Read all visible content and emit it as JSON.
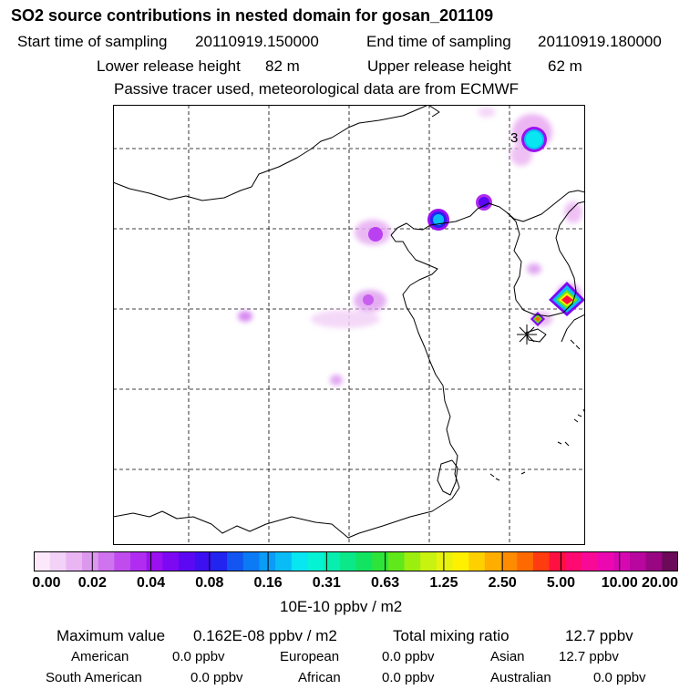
{
  "title": "SO2 source contributions in nested domain for gosan_201109",
  "sampling": {
    "start_label": "Start time of sampling",
    "start_value": "20110919.150000",
    "end_label": "End time of sampling",
    "end_value": "20110919.180000"
  },
  "release": {
    "lower_label": "Lower release height",
    "lower_value": "82 m",
    "upper_label": "Upper release height",
    "upper_value": "62 m"
  },
  "note": "Passive tracer used, meteorological data are from ECMWF",
  "map": {
    "marker_label": "3",
    "receptor_icon": "asterisk-icon"
  },
  "colorbar": {
    "ticks": [
      "0.00",
      "0.02",
      "0.04",
      "0.08",
      "0.16",
      "0.31",
      "0.63",
      "1.25",
      "2.50",
      "5.00",
      "10.00",
      "20.00"
    ],
    "colors": [
      "#fbe9fb",
      "#f3d2f7",
      "#e9b6f3",
      "#dc98ef",
      "#cf73ee",
      "#c04ced",
      "#b02cf0",
      "#9b10f0",
      "#7d08f2",
      "#5c08f2",
      "#3d10f2",
      "#2224f0",
      "#1255f0",
      "#0c7af4",
      "#0a9cf6",
      "#0abcf6",
      "#08e6f2",
      "#06f2d4",
      "#08eeb0",
      "#0ae88a",
      "#12e462",
      "#2ee43a",
      "#60e81a",
      "#9cee0e",
      "#c8f210",
      "#e8f20e",
      "#fff000",
      "#ffd000",
      "#ffae00",
      "#ff8c00",
      "#ff6a00",
      "#ff3c10",
      "#ff1040",
      "#ff0a70",
      "#f80a96",
      "#ec08b0",
      "#d608b2",
      "#b8069e",
      "#980682",
      "#6a0a58"
    ],
    "unit": "10E-10 ppbv / m2"
  },
  "stats": {
    "max_label": "Maximum value",
    "max_value": "0.162E-08 ppbv / m2",
    "total_label": "Total mixing ratio",
    "total_value": "12.7 ppbv"
  },
  "regions": {
    "american_label": "American",
    "american_value": "0.0 ppbv",
    "european_label": "European",
    "european_value": "0.0 ppbv",
    "asian_label": "Asian",
    "asian_value": "12.7 ppbv",
    "south_american_label": "South American",
    "south_american_value": "0.0 ppbv",
    "african_label": "African",
    "african_value": "0.0 ppbv",
    "australian_label": "Australian",
    "australian_value": "0.0 ppbv"
  }
}
